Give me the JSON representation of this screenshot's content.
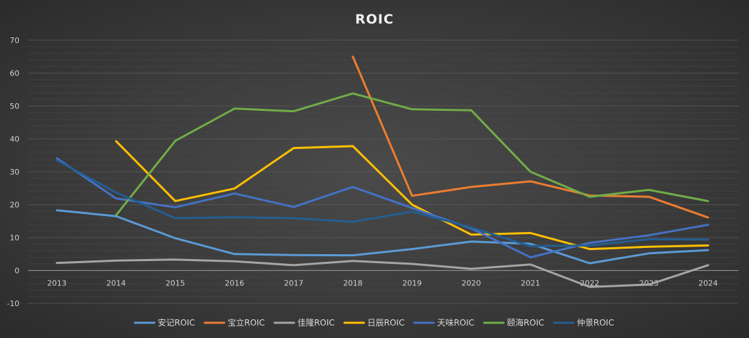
{
  "chart_data": {
    "type": "line",
    "title": "ROIC",
    "xlabel": "",
    "ylabel": "",
    "ylim": [
      -10,
      70
    ],
    "yticks": [
      -10,
      0,
      10,
      20,
      30,
      40,
      50,
      60,
      70
    ],
    "grid": true,
    "legend_position": "bottom",
    "x": [
      "2013",
      "2014",
      "2015",
      "2016",
      "2017",
      "2018",
      "2019",
      "2020",
      "2021",
      "2022",
      "2023",
      "2024"
    ],
    "series": [
      {
        "name": "安记ROIC",
        "color": "#5b9bd5",
        "values": [
          18.3,
          16.5,
          9.8,
          5.0,
          4.7,
          4.6,
          6.5,
          8.8,
          8.1,
          2.2,
          5.2,
          6.2
        ]
      },
      {
        "name": "宝立ROIC",
        "color": "#ed7d31",
        "values": [
          null,
          null,
          null,
          null,
          null,
          65.0,
          22.7,
          25.4,
          27.1,
          22.8,
          22.4,
          16.1
        ]
      },
      {
        "name": "佳隆ROIC",
        "color": "#a5a5a5",
        "values": [
          2.3,
          3.0,
          3.3,
          2.8,
          1.6,
          2.9,
          2.0,
          0.5,
          1.8,
          -5.0,
          -4.3,
          1.6
        ]
      },
      {
        "name": "日辰ROIC",
        "color": "#ffc000",
        "values": [
          null,
          39.3,
          21.1,
          24.9,
          37.2,
          37.8,
          20.0,
          10.9,
          11.4,
          6.5,
          7.2,
          7.6
        ]
      },
      {
        "name": "天味ROIC",
        "color": "#4472c4",
        "values": [
          34.1,
          21.9,
          19.2,
          23.4,
          19.3,
          25.4,
          19.0,
          12.8,
          4.0,
          8.4,
          10.7,
          13.9
        ]
      },
      {
        "name": "颐海ROIC",
        "color": "#70ad47",
        "values": [
          null,
          16.8,
          39.4,
          49.2,
          48.4,
          53.8,
          49.0,
          48.7,
          30.0,
          22.4,
          24.5,
          21.1
        ]
      },
      {
        "name": "仲景ROIC",
        "color": "#255e91",
        "values": [
          33.5,
          23.7,
          15.9,
          16.2,
          15.9,
          14.8,
          17.9,
          13.1,
          7.4,
          7.6,
          9.5,
          9.4
        ]
      }
    ]
  }
}
